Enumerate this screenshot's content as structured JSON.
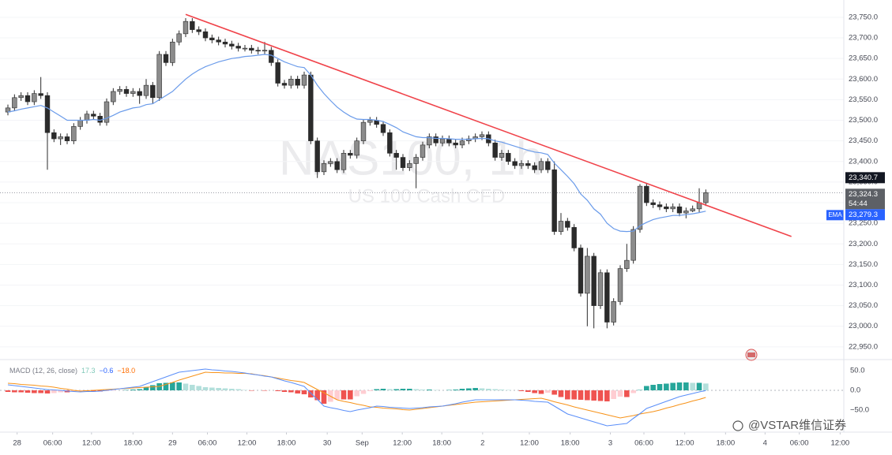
{
  "chart_data": [
    {
      "type": "candlestick",
      "watermark_symbol": "NAS100, 1h",
      "watermark_description": "US 100 Cash CFD",
      "xlim": [
        -1.2,
        127.2
      ],
      "ylim": [
        22921,
        23792
      ],
      "yticks": [
        {
          "value": 23750,
          "label": "23,750.0"
        },
        {
          "value": 23700,
          "label": "23,700.0"
        },
        {
          "value": 23650,
          "label": "23,650.0"
        },
        {
          "value": 23600,
          "label": "23,600.0"
        },
        {
          "value": 23550,
          "label": "23,550.0"
        },
        {
          "value": 23500,
          "label": "23,500.0"
        },
        {
          "value": 23450,
          "label": "23,450.0"
        },
        {
          "value": 23400,
          "label": "23,400.0"
        },
        {
          "value": 23350,
          "label": "23,350.0"
        },
        {
          "value": 23300,
          "label": "23,300.0"
        },
        {
          "value": 23250,
          "label": "23,250.0"
        },
        {
          "value": 23200,
          "label": "23,200.0"
        },
        {
          "value": 23150,
          "label": "23,150.0"
        },
        {
          "value": 23100,
          "label": "23,100.0"
        },
        {
          "value": 23050,
          "label": "23,050.0"
        },
        {
          "value": 23000,
          "label": "23,000.0"
        },
        {
          "value": 22950,
          "label": "22,950.0"
        }
      ],
      "up_color": "#8c8c8c",
      "down_color": "#2b2b2b",
      "open": [
        23520,
        23530,
        23555,
        23560,
        23545,
        23565,
        23560,
        23470,
        23455,
        23460,
        23450,
        23485,
        23500,
        23515,
        23510,
        23495,
        23545,
        23570,
        23575,
        23565,
        23570,
        23560,
        23585,
        23555,
        23660,
        23640,
        23690,
        23710,
        23740,
        23720,
        23715,
        23700,
        23695,
        23690,
        23685,
        23680,
        23675,
        23675,
        23670,
        23668,
        23670,
        23640,
        23590,
        23585,
        23600,
        23585,
        23610,
        23450,
        23375,
        23395,
        23400,
        23380,
        23420,
        23415,
        23450,
        23495,
        23500,
        23490,
        23470,
        23420,
        23410,
        23385,
        23395,
        23410,
        23440,
        23460,
        23445,
        23455,
        23445,
        23440,
        23450,
        23455,
        23460,
        23465,
        23445,
        23410,
        23420,
        23400,
        23390,
        23395,
        23390,
        23380,
        23400,
        23380,
        23230,
        23255,
        23240,
        23190,
        23080,
        23170,
        23050,
        23130,
        23010,
        23060,
        23140,
        23160,
        23235,
        23340,
        23300,
        23295,
        23290,
        23285,
        23290,
        23275,
        23280,
        23285,
        23300
      ],
      "high": [
        23538,
        23563,
        23568,
        23568,
        23573,
        23605,
        23568,
        23478,
        23468,
        23468,
        23493,
        23508,
        23523,
        23523,
        23518,
        23553,
        23578,
        23583,
        23583,
        23578,
        23578,
        23600,
        23593,
        23668,
        23668,
        23698,
        23718,
        23748,
        23748,
        23728,
        23723,
        23708,
        23703,
        23698,
        23693,
        23688,
        23683,
        23683,
        23678,
        23690,
        23678,
        23648,
        23598,
        23608,
        23608,
        23618,
        23618,
        23458,
        23403,
        23408,
        23408,
        23428,
        23428,
        23458,
        23503,
        23508,
        23508,
        23498,
        23478,
        23428,
        23418,
        23403,
        23418,
        23448,
        23468,
        23468,
        23463,
        23463,
        23453,
        23458,
        23463,
        23468,
        23473,
        23473,
        23453,
        23428,
        23428,
        23408,
        23403,
        23403,
        23398,
        23408,
        23408,
        23400,
        23275,
        23263,
        23248,
        23198,
        23190,
        23178,
        23138,
        23138,
        23068,
        23148,
        23200,
        23243,
        23345,
        23348,
        23308,
        23303,
        23298,
        23298,
        23298,
        23288,
        23293,
        23335,
        23332
      ],
      "low": [
        23512,
        23522,
        23547,
        23537,
        23537,
        23552,
        23380,
        23447,
        23440,
        23442,
        23442,
        23477,
        23492,
        23502,
        23487,
        23487,
        23537,
        23562,
        23557,
        23557,
        23540,
        23552,
        23540,
        23547,
        23632,
        23632,
        23682,
        23702,
        23712,
        23707,
        23692,
        23687,
        23682,
        23677,
        23672,
        23667,
        23667,
        23662,
        23660,
        23660,
        23632,
        23582,
        23577,
        23577,
        23577,
        23577,
        23442,
        23360,
        23367,
        23387,
        23372,
        23372,
        23407,
        23407,
        23442,
        23487,
        23482,
        23462,
        23412,
        23380,
        23377,
        23377,
        23335,
        23402,
        23432,
        23437,
        23437,
        23437,
        23432,
        23432,
        23442,
        23447,
        23452,
        23437,
        23402,
        23402,
        23392,
        23382,
        23382,
        23382,
        23372,
        23372,
        23372,
        23222,
        23222,
        23232,
        23182,
        23072,
        23000,
        22995,
        23042,
        22995,
        23002,
        23052,
        23132,
        23152,
        23227,
        23292,
        23287,
        23282,
        23277,
        23277,
        23267,
        23262,
        23277,
        23277,
        23292
      ],
      "close": [
        23530,
        23555,
        23560,
        23545,
        23565,
        23560,
        23470,
        23455,
        23460,
        23450,
        23485,
        23500,
        23515,
        23510,
        23495,
        23545,
        23570,
        23575,
        23565,
        23570,
        23560,
        23585,
        23555,
        23660,
        23640,
        23690,
        23710,
        23740,
        23720,
        23715,
        23700,
        23695,
        23690,
        23685,
        23680,
        23675,
        23675,
        23670,
        23668,
        23670,
        23640,
        23590,
        23585,
        23600,
        23585,
        23610,
        23450,
        23375,
        23395,
        23400,
        23380,
        23420,
        23415,
        23450,
        23495,
        23500,
        23490,
        23470,
        23420,
        23410,
        23385,
        23395,
        23410,
        23440,
        23460,
        23445,
        23455,
        23445,
        23440,
        23450,
        23455,
        23460,
        23465,
        23445,
        23410,
        23420,
        23400,
        23390,
        23395,
        23390,
        23380,
        23400,
        23380,
        23230,
        23255,
        23240,
        23190,
        23080,
        23170,
        23050,
        23130,
        23010,
        23060,
        23140,
        23160,
        23235,
        23340,
        23300,
        23295,
        23290,
        23285,
        23290,
        23275,
        23280,
        23285,
        23300,
        23324.3
      ],
      "ema": {
        "name": "EMA",
        "color": "#6a9bea",
        "values": [
          23520,
          23523,
          23527,
          23530,
          23533,
          23536,
          23530,
          23520,
          23510,
          23500,
          23500,
          23500,
          23500,
          23502,
          23500,
          23505,
          23512,
          23520,
          23525,
          23530,
          23532,
          23538,
          23540,
          23550,
          23560,
          23570,
          23585,
          23600,
          23612,
          23622,
          23630,
          23636,
          23642,
          23646,
          23650,
          23652,
          23655,
          23656,
          23658,
          23660,
          23658,
          23650,
          23642,
          23636,
          23630,
          23628,
          23610,
          23585,
          23565,
          23548,
          23532,
          23520,
          23510,
          23503,
          23502,
          23502,
          23500,
          23497,
          23490,
          23482,
          23472,
          23466,
          23460,
          23458,
          23458,
          23456,
          23456,
          23455,
          23454,
          23454,
          23454,
          23455,
          23456,
          23455,
          23450,
          23447,
          23442,
          23437,
          23432,
          23427,
          23423,
          23421,
          23417,
          23396,
          23380,
          23364,
          23346,
          23321,
          23306,
          23285,
          23272,
          23250,
          23237,
          23231,
          23230,
          23231,
          23244,
          23252,
          23259,
          23263,
          23266,
          23269,
          23269,
          23271,
          23273,
          23276,
          23279.3
        ]
      },
      "trendline": {
        "color": "#f0434a",
        "x": [
          27,
          119
        ],
        "values": [
          23757,
          23218
        ]
      },
      "price_labels": [
        {
          "value": 23340.7,
          "label": "23,340.7",
          "color": "#131722"
        },
        {
          "value": 23324.3,
          "label": "23,324.3",
          "color": "#5d6066"
        },
        {
          "value": 23279.3,
          "label": "23,279.3",
          "color": "#2962ff"
        }
      ],
      "countdown": "54:44"
    },
    {
      "type": "macd",
      "legend_title": "MACD (12, 26, close)",
      "legend_values": [
        {
          "value": 17.3,
          "label": "17.3",
          "color": "#7fc8b8"
        },
        {
          "value": -0.6,
          "label": "−0.6",
          "color": "#2962ff"
        },
        {
          "value": -18.0,
          "label": "−18.0",
          "color": "#ff6d00"
        }
      ],
      "xlim": [
        -1.2,
        127.2
      ],
      "ylim": [
        -106,
        74
      ],
      "yticks": [
        {
          "value": 50,
          "label": "50.0"
        },
        {
          "value": 0,
          "label": "0.0"
        },
        {
          "value": -50,
          "label": "−50.0"
        }
      ],
      "xticks": [
        {
          "value": 1.4,
          "label": "28"
        },
        {
          "value": 6.8,
          "label": "06:00"
        },
        {
          "value": 12.7,
          "label": "12:00"
        },
        {
          "value": 19,
          "label": "18:00"
        },
        {
          "value": 25,
          "label": "29"
        },
        {
          "value": 30.3,
          "label": "06:00"
        },
        {
          "value": 36.3,
          "label": "12:00"
        },
        {
          "value": 42.3,
          "label": "18:00"
        },
        {
          "value": 48.5,
          "label": "30"
        },
        {
          "value": 53.8,
          "label": "Sep"
        },
        {
          "value": 59.9,
          "label": "12:00"
        },
        {
          "value": 65.9,
          "label": "18:00"
        },
        {
          "value": 72.1,
          "label": "2"
        },
        {
          "value": 79.2,
          "label": "12:00"
        },
        {
          "value": 85.4,
          "label": "18:00"
        },
        {
          "value": 91.5,
          "label": "3"
        },
        {
          "value": 96.6,
          "label": "06:00"
        },
        {
          "value": 102.8,
          "label": "12:00"
        },
        {
          "value": 109,
          "label": "18:00"
        },
        {
          "value": 115,
          "label": "4"
        },
        {
          "value": 120.2,
          "label": "06:00"
        },
        {
          "value": 126.4,
          "label": "12:00"
        }
      ],
      "histogram": {
        "up_strong": "#26a69a",
        "up_weak": "#b2dfdb",
        "down_strong": "#ef5350",
        "down_weak": "#ffcdd2",
        "values": [
          -4,
          -5,
          -5,
          -6,
          -7,
          -7,
          -8,
          -7,
          -5,
          -5,
          -3,
          -2,
          -2,
          -3,
          -3,
          -2,
          -1,
          0,
          1,
          2,
          3,
          8,
          13,
          18,
          19,
          20,
          20,
          17,
          14,
          11,
          8,
          7,
          6,
          5,
          4,
          3,
          1,
          -1,
          0,
          -1,
          0,
          -2,
          -4,
          -5,
          -8,
          -10,
          -18,
          -25,
          -34,
          -29,
          -23,
          -23,
          -23,
          -15,
          -9,
          -2,
          3,
          4,
          3,
          3,
          4,
          4,
          3,
          2,
          2,
          1,
          0,
          1,
          2,
          4,
          5,
          6,
          5,
          4,
          3,
          2,
          1,
          0,
          -2,
          -4,
          -7,
          -9,
          -6,
          -11,
          -17,
          -23,
          -23,
          -24,
          -25,
          -26,
          -27,
          -28,
          -22,
          -16,
          -17,
          -7,
          1,
          11,
          14,
          16,
          17,
          19,
          20,
          20,
          19,
          19,
          17.3
        ]
      },
      "macd": {
        "color": "#5b8ff9",
        "values": [
          14,
          12,
          10,
          8,
          6,
          4,
          2,
          1,
          0,
          -2,
          -3,
          -4,
          -3,
          -3,
          -2,
          0,
          2,
          4,
          6,
          8,
          10,
          16,
          22,
          28,
          34,
          40,
          46,
          48,
          50,
          52,
          54,
          52,
          51,
          49,
          48,
          46,
          44,
          41,
          39,
          36,
          34,
          29,
          24,
          20,
          15,
          10,
          -7,
          -23,
          -40,
          -44,
          -47,
          -51,
          -54,
          -50,
          -47,
          -44,
          -40,
          -41,
          -43,
          -44,
          -45,
          -46,
          -45,
          -44,
          -42,
          -41,
          -40,
          -37,
          -34,
          -30,
          -27,
          -24,
          -24,
          -24,
          -24,
          -24,
          -24,
          -24,
          -25,
          -26,
          -28,
          -29,
          -30,
          -40,
          -50,
          -60,
          -65,
          -70,
          -75,
          -80,
          -85,
          -90,
          -88,
          -86,
          -84,
          -71,
          -59,
          -46,
          -40,
          -34,
          -28,
          -22,
          -16,
          -12,
          -8,
          -4,
          -0.6
        ]
      },
      "signal": {
        "color": "#f7931a",
        "values": [
          18,
          17,
          15,
          14,
          13,
          11,
          10,
          8,
          5,
          3,
          0,
          -2,
          -1,
          0,
          1,
          2,
          3,
          4,
          5,
          6,
          7,
          8,
          9,
          10,
          15,
          20,
          26,
          31,
          36,
          41,
          46,
          45,
          45,
          44,
          44,
          43,
          43,
          42,
          39,
          37,
          34,
          31,
          28,
          25,
          23,
          20,
          11,
          2,
          -6,
          -15,
          -24,
          -28,
          -31,
          -35,
          -38,
          -42,
          -43,
          -45,
          -46,
          -47,
          -49,
          -50,
          -48,
          -46,
          -44,
          -42,
          -40,
          -38,
          -36,
          -34,
          -32,
          -30,
          -29,
          -28,
          -27,
          -26,
          -25,
          -24,
          -23,
          -22,
          -21,
          -20,
          -24,
          -29,
          -33,
          -37,
          -42,
          -46,
          -50,
          -54,
          -58,
          -62,
          -66,
          -70,
          -67,
          -64,
          -60,
          -57,
          -54,
          -50,
          -45,
          -41,
          -36,
          -32,
          -27,
          -23,
          -18
        ]
      }
    }
  ],
  "footer": {
    "brand": "@VSTAR维信证券"
  }
}
